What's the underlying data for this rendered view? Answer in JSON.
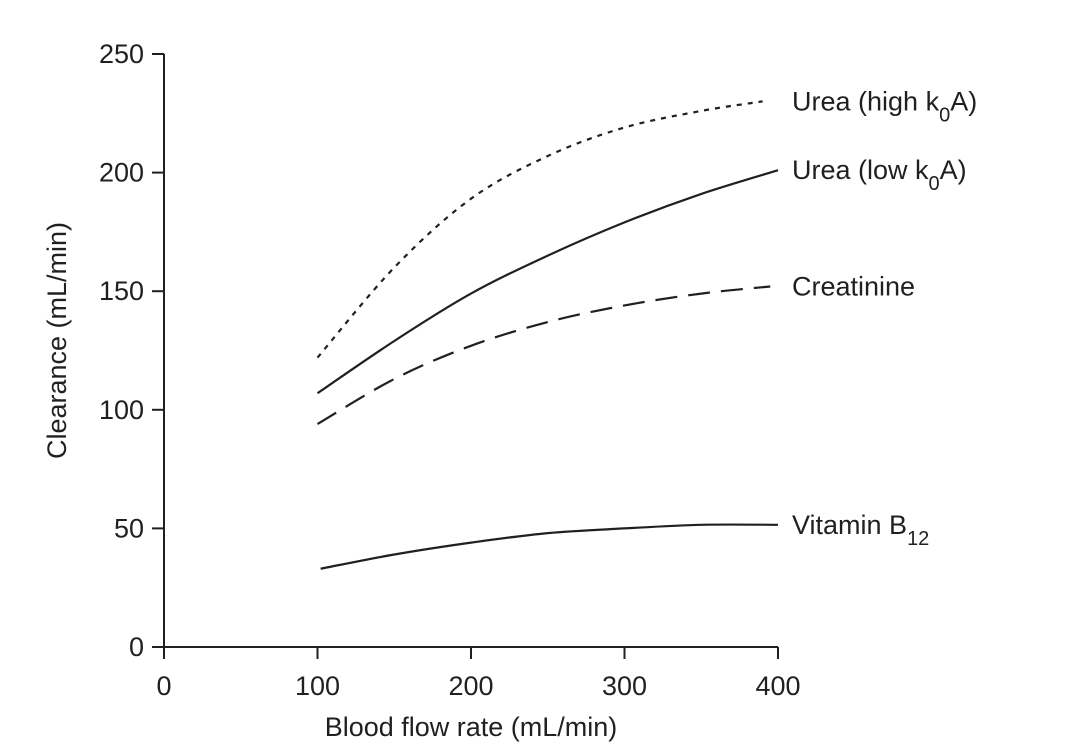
{
  "chart_data": {
    "type": "line",
    "xlabel": "Blood flow rate (mL/min)",
    "ylabel": "Clearance (mL/min)",
    "xlim": [
      0,
      400
    ],
    "ylim": [
      0,
      250
    ],
    "xticks": [
      0,
      100,
      200,
      300,
      400
    ],
    "yticks": [
      0,
      50,
      100,
      150,
      200,
      250
    ],
    "grid": false,
    "legend": "inline-right",
    "series": [
      {
        "name": "Urea (high k0A)",
        "label_parts": [
          "Urea (high k",
          "0",
          "A)"
        ],
        "style": "dotted",
        "x": [
          100,
          150,
          200,
          250,
          300,
          350,
          390
        ],
        "y": [
          122,
          160,
          189,
          207,
          219,
          226,
          230
        ]
      },
      {
        "name": "Urea (low k0A)",
        "label_parts": [
          "Urea (low k",
          "0",
          "A)"
        ],
        "style": "solid",
        "x": [
          100,
          150,
          200,
          250,
          300,
          350,
          400
        ],
        "y": [
          107,
          129,
          149,
          165,
          179,
          191,
          201
        ]
      },
      {
        "name": "Creatinine",
        "label_parts": [
          "Creatinine",
          "",
          ""
        ],
        "style": "dashed",
        "x": [
          100,
          150,
          200,
          250,
          300,
          350,
          395
        ],
        "y": [
          94,
          113,
          127,
          137,
          144,
          149,
          152
        ]
      },
      {
        "name": "Vitamin B12",
        "label_parts": [
          "Vitamin B",
          "12",
          ""
        ],
        "style": "solid",
        "x": [
          102,
          150,
          200,
          250,
          300,
          350,
          400
        ],
        "y": [
          33,
          39,
          44,
          48,
          50,
          51.5,
          51.5
        ]
      }
    ]
  }
}
